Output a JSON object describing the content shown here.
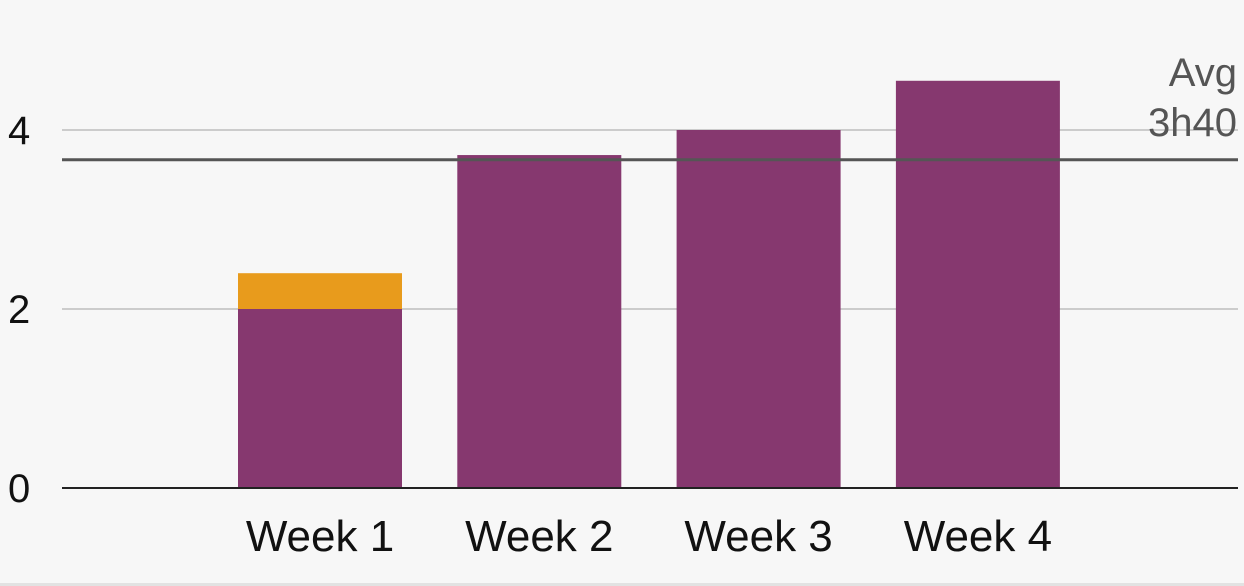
{
  "chart_data": {
    "type": "bar",
    "stacked": true,
    "categories": [
      "Week 1",
      "Week 2",
      "Week 3",
      "Week 4"
    ],
    "series": [
      {
        "color": "#86386f",
        "values": [
          2.0,
          3.72,
          4.0,
          4.55
        ]
      },
      {
        "color": "#e89b1c",
        "values": [
          0.4,
          0,
          0,
          0
        ]
      }
    ],
    "yticks": [
      "0",
      "2",
      "4"
    ],
    "ylim": [
      0,
      5.4
    ],
    "grid": true,
    "reference_line": {
      "value": 3.667,
      "label_line1": "Avg",
      "label_line2": "3h40",
      "color": "#555555"
    },
    "title": "",
    "xlabel": "",
    "ylabel": ""
  }
}
